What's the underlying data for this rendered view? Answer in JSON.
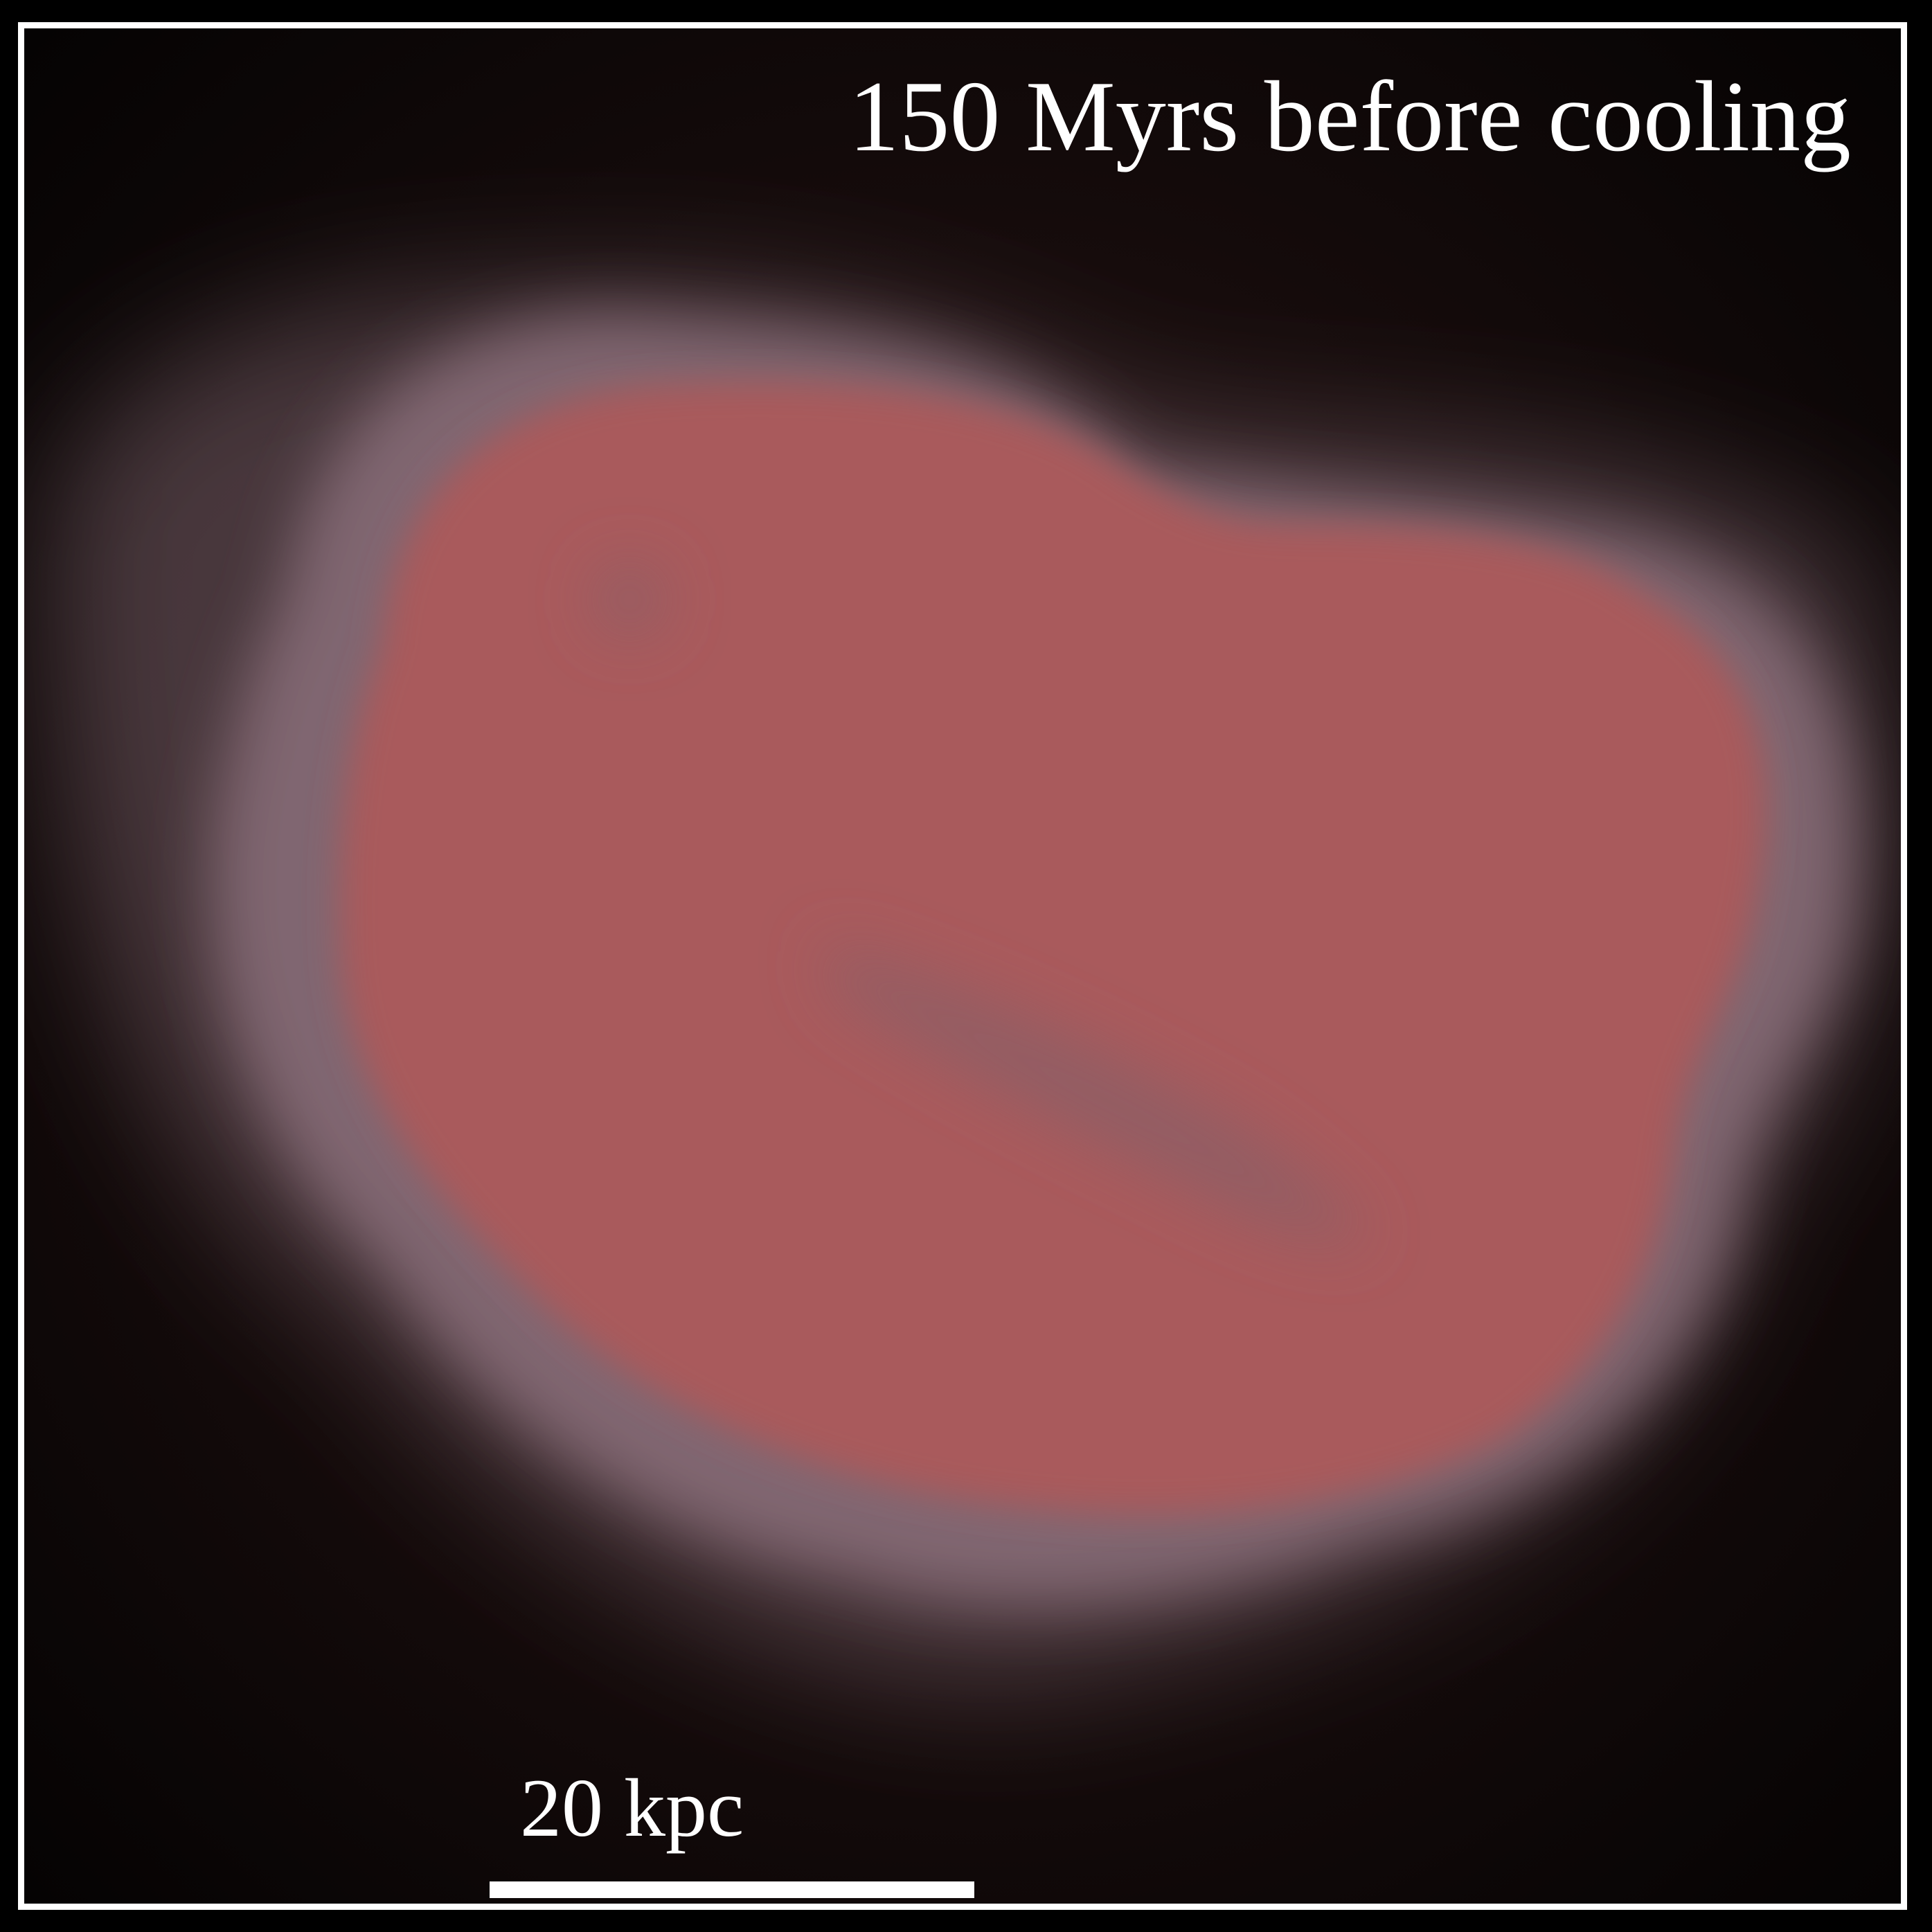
{
  "image": {
    "time_label": "150 Myrs before cooling",
    "scale_bar_label": "20 kpc",
    "colors": {
      "background": "#050303",
      "gas_core": "#a95a5c",
      "gas_halo": "#8a6f7a",
      "dark_streak": "#8b5e66",
      "border": "#ffffff",
      "text": "#ffffff"
    }
  }
}
